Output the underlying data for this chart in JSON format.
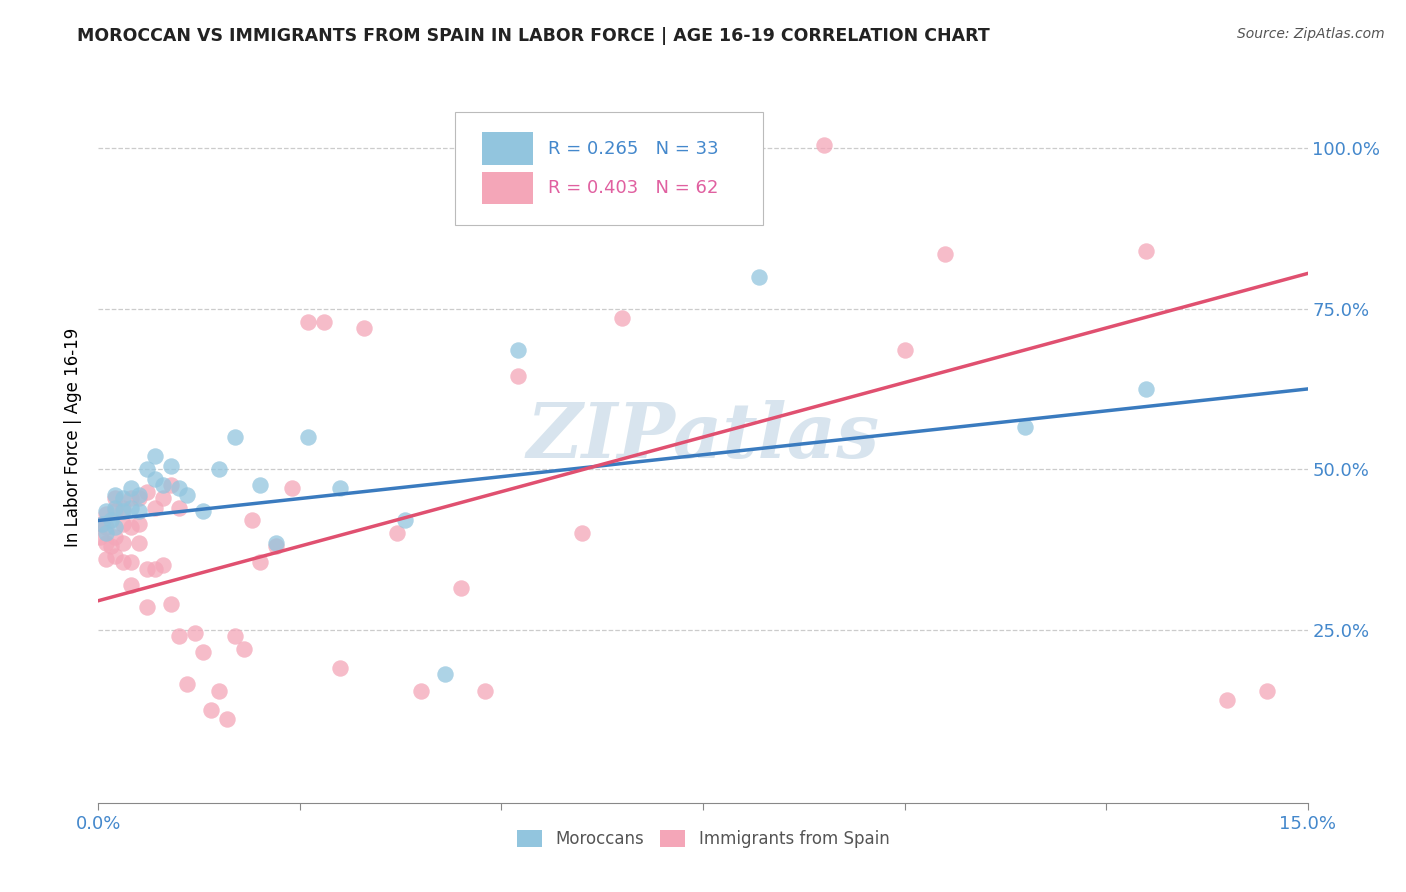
{
  "title": "MOROCCAN VS IMMIGRANTS FROM SPAIN IN LABOR FORCE | AGE 16-19 CORRELATION CHART",
  "source": "Source: ZipAtlas.com",
  "ylabel": "In Labor Force | Age 16-19",
  "xlim": [
    0.0,
    0.15
  ],
  "ylim": [
    -0.02,
    1.12
  ],
  "xticks": [
    0.0,
    0.025,
    0.05,
    0.075,
    0.1,
    0.125,
    0.15
  ],
  "yticks_grid": [
    0.25,
    0.5,
    0.75,
    1.0
  ],
  "yticklabels_right": [
    "25.0%",
    "50.0%",
    "75.0%",
    "100.0%"
  ],
  "blue_color": "#92c5de",
  "pink_color": "#f4a6b8",
  "blue_line_color": "#3a7bbf",
  "pink_line_color": "#e05070",
  "watermark": "ZIPatlas",
  "blue_line_x0": 0.0,
  "blue_line_y0": 0.42,
  "blue_line_x1": 0.15,
  "blue_line_y1": 0.625,
  "pink_line_x0": 0.0,
  "pink_line_y0": 0.295,
  "pink_line_x1": 0.15,
  "pink_line_y1": 0.805,
  "blue_dots_x": [
    0.0005,
    0.001,
    0.001,
    0.0015,
    0.002,
    0.002,
    0.002,
    0.003,
    0.003,
    0.004,
    0.004,
    0.005,
    0.005,
    0.006,
    0.007,
    0.007,
    0.008,
    0.009,
    0.01,
    0.011,
    0.013,
    0.015,
    0.017,
    0.02,
    0.022,
    0.026,
    0.03,
    0.038,
    0.043,
    0.052,
    0.082,
    0.115,
    0.13
  ],
  "blue_dots_y": [
    0.415,
    0.4,
    0.435,
    0.42,
    0.41,
    0.44,
    0.46,
    0.435,
    0.455,
    0.44,
    0.47,
    0.435,
    0.46,
    0.5,
    0.52,
    0.485,
    0.475,
    0.505,
    0.47,
    0.46,
    0.435,
    0.5,
    0.55,
    0.475,
    0.385,
    0.55,
    0.47,
    0.42,
    0.18,
    0.685,
    0.8,
    0.565,
    0.625
  ],
  "pink_dots_x": [
    0.0002,
    0.0005,
    0.001,
    0.001,
    0.001,
    0.001,
    0.0015,
    0.002,
    0.002,
    0.002,
    0.002,
    0.003,
    0.003,
    0.003,
    0.003,
    0.004,
    0.004,
    0.004,
    0.004,
    0.005,
    0.005,
    0.005,
    0.006,
    0.006,
    0.006,
    0.007,
    0.007,
    0.008,
    0.008,
    0.009,
    0.009,
    0.01,
    0.01,
    0.011,
    0.012,
    0.013,
    0.014,
    0.015,
    0.016,
    0.017,
    0.018,
    0.019,
    0.02,
    0.022,
    0.024,
    0.026,
    0.028,
    0.03,
    0.033,
    0.037,
    0.04,
    0.045,
    0.048,
    0.052,
    0.06,
    0.065,
    0.09,
    0.1,
    0.105,
    0.13,
    0.14,
    0.145
  ],
  "pink_dots_y": [
    0.395,
    0.415,
    0.36,
    0.385,
    0.41,
    0.43,
    0.38,
    0.365,
    0.395,
    0.435,
    0.455,
    0.355,
    0.385,
    0.415,
    0.44,
    0.32,
    0.355,
    0.41,
    0.455,
    0.385,
    0.415,
    0.455,
    0.285,
    0.345,
    0.465,
    0.345,
    0.44,
    0.35,
    0.455,
    0.29,
    0.475,
    0.24,
    0.44,
    0.165,
    0.245,
    0.215,
    0.125,
    0.155,
    0.11,
    0.24,
    0.22,
    0.42,
    0.355,
    0.38,
    0.47,
    0.73,
    0.73,
    0.19,
    0.72,
    0.4,
    0.155,
    0.315,
    0.155,
    0.645,
    0.4,
    0.735,
    1.005,
    0.685,
    0.835,
    0.84,
    0.14,
    0.155
  ],
  "legend_blue_text": "R = 0.265   N = 33",
  "legend_pink_text": "R = 0.403   N = 62",
  "bottom_legend_labels": [
    "Moroccans",
    "Immigrants from Spain"
  ]
}
